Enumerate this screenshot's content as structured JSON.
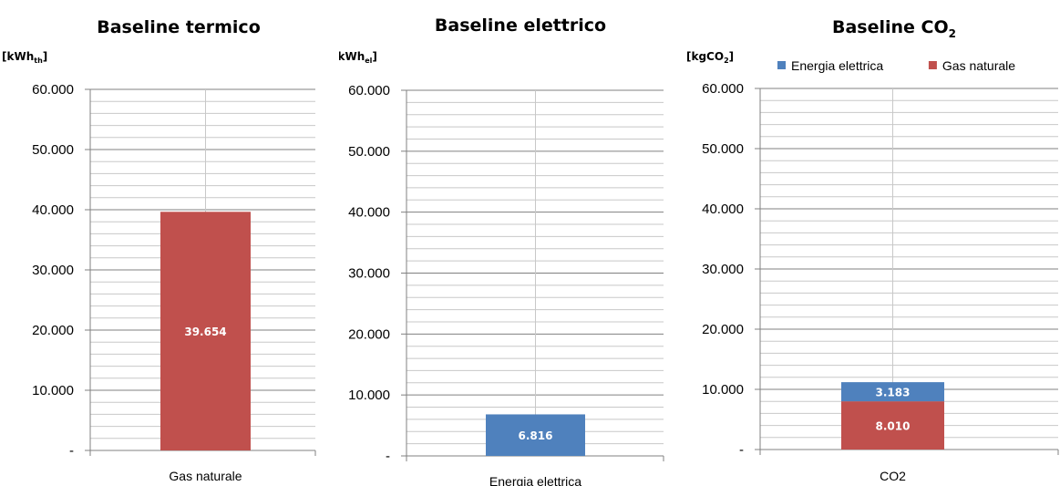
{
  "colors": {
    "gas": "#C0504D",
    "elec": "#4F81BD",
    "grid": "#c8c8c8",
    "axis": "#808080"
  },
  "chart_data": [
    {
      "type": "bar",
      "title": "Baseline termico",
      "unit": {
        "main": "[kWh",
        "sub": "th",
        "end": "]"
      },
      "categories": [
        "Gas naturale"
      ],
      "series": [
        {
          "values": [
            39654
          ],
          "color": "#C0504D",
          "labels": [
            "39.654"
          ]
        }
      ],
      "ylim": [
        0,
        60000
      ],
      "yticks": [
        "-",
        "10.000",
        "20.000",
        "30.000",
        "40.000",
        "50.000",
        "60.000"
      ],
      "grid": true
    },
    {
      "type": "bar",
      "title": "Baseline elettrico",
      "unit": {
        "main": "[kWh",
        "sub": "el",
        "end": "]"
      },
      "categories": [
        "Energia elettrica"
      ],
      "series": [
        {
          "values": [
            6816
          ],
          "color": "#4F81BD",
          "labels": [
            "6.816"
          ]
        }
      ],
      "ylim": [
        0,
        60000
      ],
      "yticks": [
        "-",
        "10.000",
        "20.000",
        "30.000",
        "40.000",
        "50.000",
        "60.000"
      ],
      "grid": true
    },
    {
      "type": "bar",
      "stacked": true,
      "title": "Baseline CO",
      "title_sub": "2",
      "unit": {
        "main": "[kgCO",
        "sub": "2",
        "end": "]"
      },
      "categories": [
        "CO2"
      ],
      "series": [
        {
          "name": "Gas naturale",
          "values": [
            8010
          ],
          "color": "#C0504D",
          "labels": [
            "8.010"
          ]
        },
        {
          "name": "Energia elettrica",
          "values": [
            3183
          ],
          "color": "#4F81BD",
          "labels": [
            "3.183"
          ]
        }
      ],
      "legend": {
        "position": "top",
        "order": [
          "Energia elettrica",
          "Gas naturale"
        ]
      },
      "ylim": [
        0,
        60000
      ],
      "yticks": [
        "-",
        "10.000",
        "20.000",
        "30.000",
        "40.000",
        "50.000",
        "60.000"
      ],
      "grid": true
    }
  ]
}
